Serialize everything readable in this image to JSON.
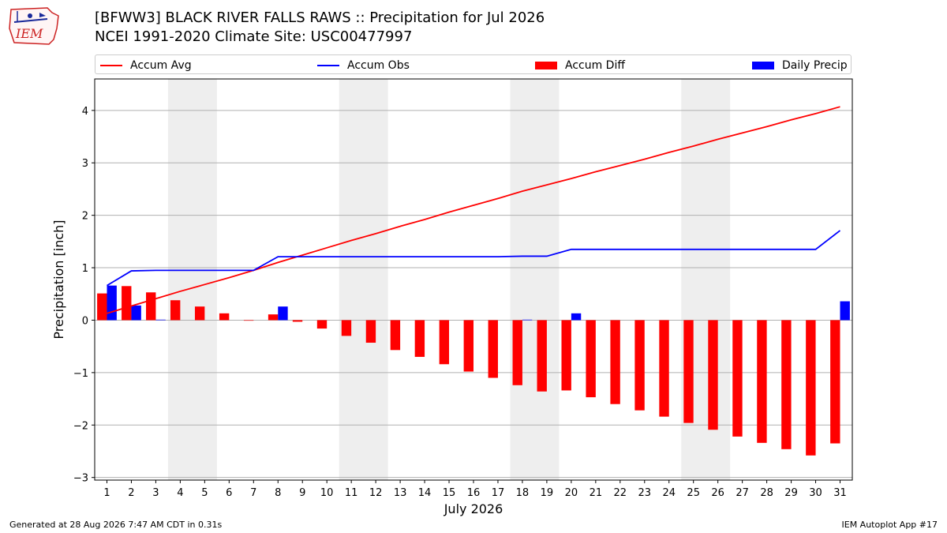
{
  "logo": {
    "text": "IEM"
  },
  "title": {
    "line1": "[BFWW3] BLACK RIVER FALLS RAWS :: Precipitation for Jul 2026",
    "line2": "NCEI 1991-2020 Climate Site: USC00477997"
  },
  "legend": {
    "accum_avg": "Accum Avg",
    "accum_obs": "Accum Obs",
    "accum_diff": "Accum Diff",
    "daily_precip": "Daily Precip"
  },
  "colors": {
    "avg": "#ff0000",
    "obs": "#0000ff",
    "diff": "#ff0000",
    "daily": "#0000ff",
    "weekend": "#eeeeee"
  },
  "footer": {
    "left": "Generated at 28 Aug 2026 7:47 AM CDT in 0.31s",
    "right": "IEM Autoplot App #17"
  },
  "chart_data": {
    "type": "bar",
    "title": "[BFWW3] BLACK RIVER FALLS RAWS :: Precipitation for Jul 2026",
    "xlabel": "July 2026",
    "ylabel": "Precipitation [inch]",
    "xlim": [
      0.5,
      31.5
    ],
    "ylim": [
      -3.05,
      4.6
    ],
    "yticks": [
      -3,
      -2,
      -1,
      0,
      1,
      2,
      3,
      4
    ],
    "grid": "horizontal",
    "legend_placement": "top",
    "weekend_shading": [
      [
        4,
        5
      ],
      [
        11,
        12
      ],
      [
        18,
        19
      ],
      [
        25,
        26
      ]
    ],
    "categories": [
      1,
      2,
      3,
      4,
      5,
      6,
      7,
      8,
      9,
      10,
      11,
      12,
      13,
      14,
      15,
      16,
      17,
      18,
      19,
      20,
      21,
      22,
      23,
      24,
      25,
      26,
      27,
      28,
      29,
      30,
      31
    ],
    "series": [
      {
        "name": "Accum Avg",
        "type": "line",
        "values": [
          0.13,
          0.27,
          0.41,
          0.55,
          0.68,
          0.81,
          0.95,
          1.1,
          1.24,
          1.38,
          1.52,
          1.65,
          1.79,
          1.92,
          2.06,
          2.19,
          2.32,
          2.46,
          2.58,
          2.7,
          2.83,
          2.95,
          3.07,
          3.2,
          3.32,
          3.45,
          3.57,
          3.69,
          3.82,
          3.94,
          4.07
        ]
      },
      {
        "name": "Accum Obs",
        "type": "line",
        "values": [
          0.66,
          0.94,
          0.95,
          0.95,
          0.95,
          0.95,
          0.95,
          1.21,
          1.21,
          1.21,
          1.21,
          1.21,
          1.21,
          1.21,
          1.21,
          1.21,
          1.21,
          1.22,
          1.22,
          1.35,
          1.35,
          1.35,
          1.35,
          1.35,
          1.35,
          1.35,
          1.35,
          1.35,
          1.35,
          1.35,
          1.71
        ]
      },
      {
        "name": "Accum Diff",
        "type": "bar",
        "values": [
          0.51,
          0.65,
          0.53,
          0.38,
          0.26,
          0.13,
          -0.01,
          0.11,
          -0.03,
          -0.16,
          -0.3,
          -0.43,
          -0.57,
          -0.7,
          -0.84,
          -0.98,
          -1.1,
          -1.24,
          -1.36,
          -1.34,
          -1.47,
          -1.6,
          -1.72,
          -1.84,
          -1.96,
          -2.09,
          -2.22,
          -2.34,
          -2.46,
          -2.58,
          -2.35
        ]
      },
      {
        "name": "Daily Precip",
        "type": "bar",
        "values": [
          0.66,
          0.28,
          0.01,
          0,
          0,
          0,
          0,
          0.26,
          0,
          0,
          0,
          0,
          0,
          0,
          0,
          0,
          0,
          0.01,
          0,
          0.13,
          0,
          0,
          0,
          0,
          0,
          0,
          0,
          0,
          0,
          0,
          0.36
        ]
      }
    ]
  }
}
